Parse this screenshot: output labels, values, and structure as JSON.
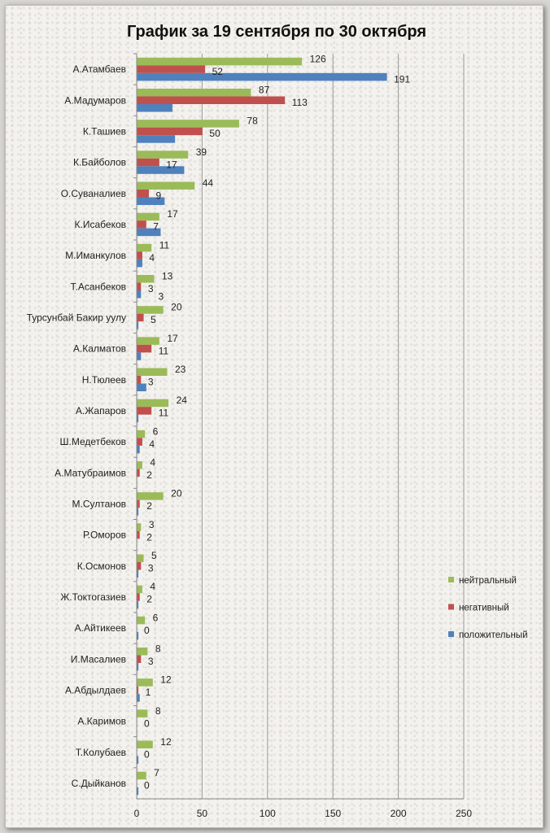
{
  "chart_data": {
    "type": "bar",
    "orientation": "horizontal",
    "title": "График за 19 сентября по 30 октября",
    "xlabel": "",
    "ylabel": "",
    "xlim": [
      0,
      250
    ],
    "xticks": [
      0,
      50,
      100,
      150,
      200,
      250
    ],
    "grid": true,
    "legend_position": "right",
    "categories": [
      "А.Атамбаев",
      "А.Мадумаров",
      "К.Ташиев",
      "К.Байболов",
      "О.Суваналиев",
      "К.Исабеков",
      "М.Иманкулов",
      "Т.Асанбеков",
      "Турсунбай Бакир уулу",
      "А.Калматов",
      "Н.Тюлеев",
      "А.Жапаров",
      "Ш.Медетбеков",
      "А.Матубраимов",
      "М.Султанов",
      "Р.Оморов",
      "К.Осмонов",
      "Ж.Токтогазиев",
      "А.Айтикеев",
      "И.Масалиев",
      "А.Абдылдаев",
      "А.Каримов",
      "Т.Колубаев",
      "С.Дыйканов"
    ],
    "series": [
      {
        "name": "нейтральный",
        "color": "#9bbb59",
        "values": [
          126,
          87,
          78,
          39,
          44,
          17,
          11,
          13,
          20,
          17,
          23,
          24,
          6,
          4,
          20,
          3,
          5,
          4,
          6,
          8,
          12,
          8,
          12,
          7
        ],
        "labels": [
          "126",
          "87",
          "78",
          "39",
          "44",
          "17",
          "11",
          "13",
          "20",
          "17",
          "23",
          "24",
          "6",
          "4",
          "20",
          "3",
          "5",
          "4",
          "6",
          "8",
          "12",
          "8",
          "12",
          "7"
        ]
      },
      {
        "name": "негативный",
        "color": "#c0504d",
        "values": [
          52,
          113,
          50,
          17,
          9,
          7,
          4,
          3,
          5,
          11,
          3,
          11,
          4,
          2,
          2,
          2,
          3,
          2,
          0,
          3,
          1,
          0,
          0,
          0
        ],
        "labels": [
          "52",
          "113",
          "50",
          "17",
          "9",
          "7",
          "4",
          "3",
          "5",
          "11",
          "3",
          "11",
          "4",
          "2",
          "2",
          "2",
          "3",
          "2",
          "0",
          "3",
          "1",
          "0",
          "0",
          "0"
        ]
      },
      {
        "name": "положительный",
        "color": "#4f81bd",
        "values": [
          191,
          27,
          29,
          36,
          21,
          18,
          4,
          3,
          1,
          3,
          7,
          1,
          2,
          0,
          1,
          0,
          1,
          1,
          1,
          1,
          2,
          0,
          1,
          1
        ],
        "labels": [
          "191",
          "",
          "",
          "",
          "",
          "",
          "",
          "3",
          "",
          "",
          "",
          "",
          "",
          "",
          "",
          "",
          "",
          "",
          "",
          "",
          "",
          "",
          "",
          ""
        ]
      }
    ]
  }
}
